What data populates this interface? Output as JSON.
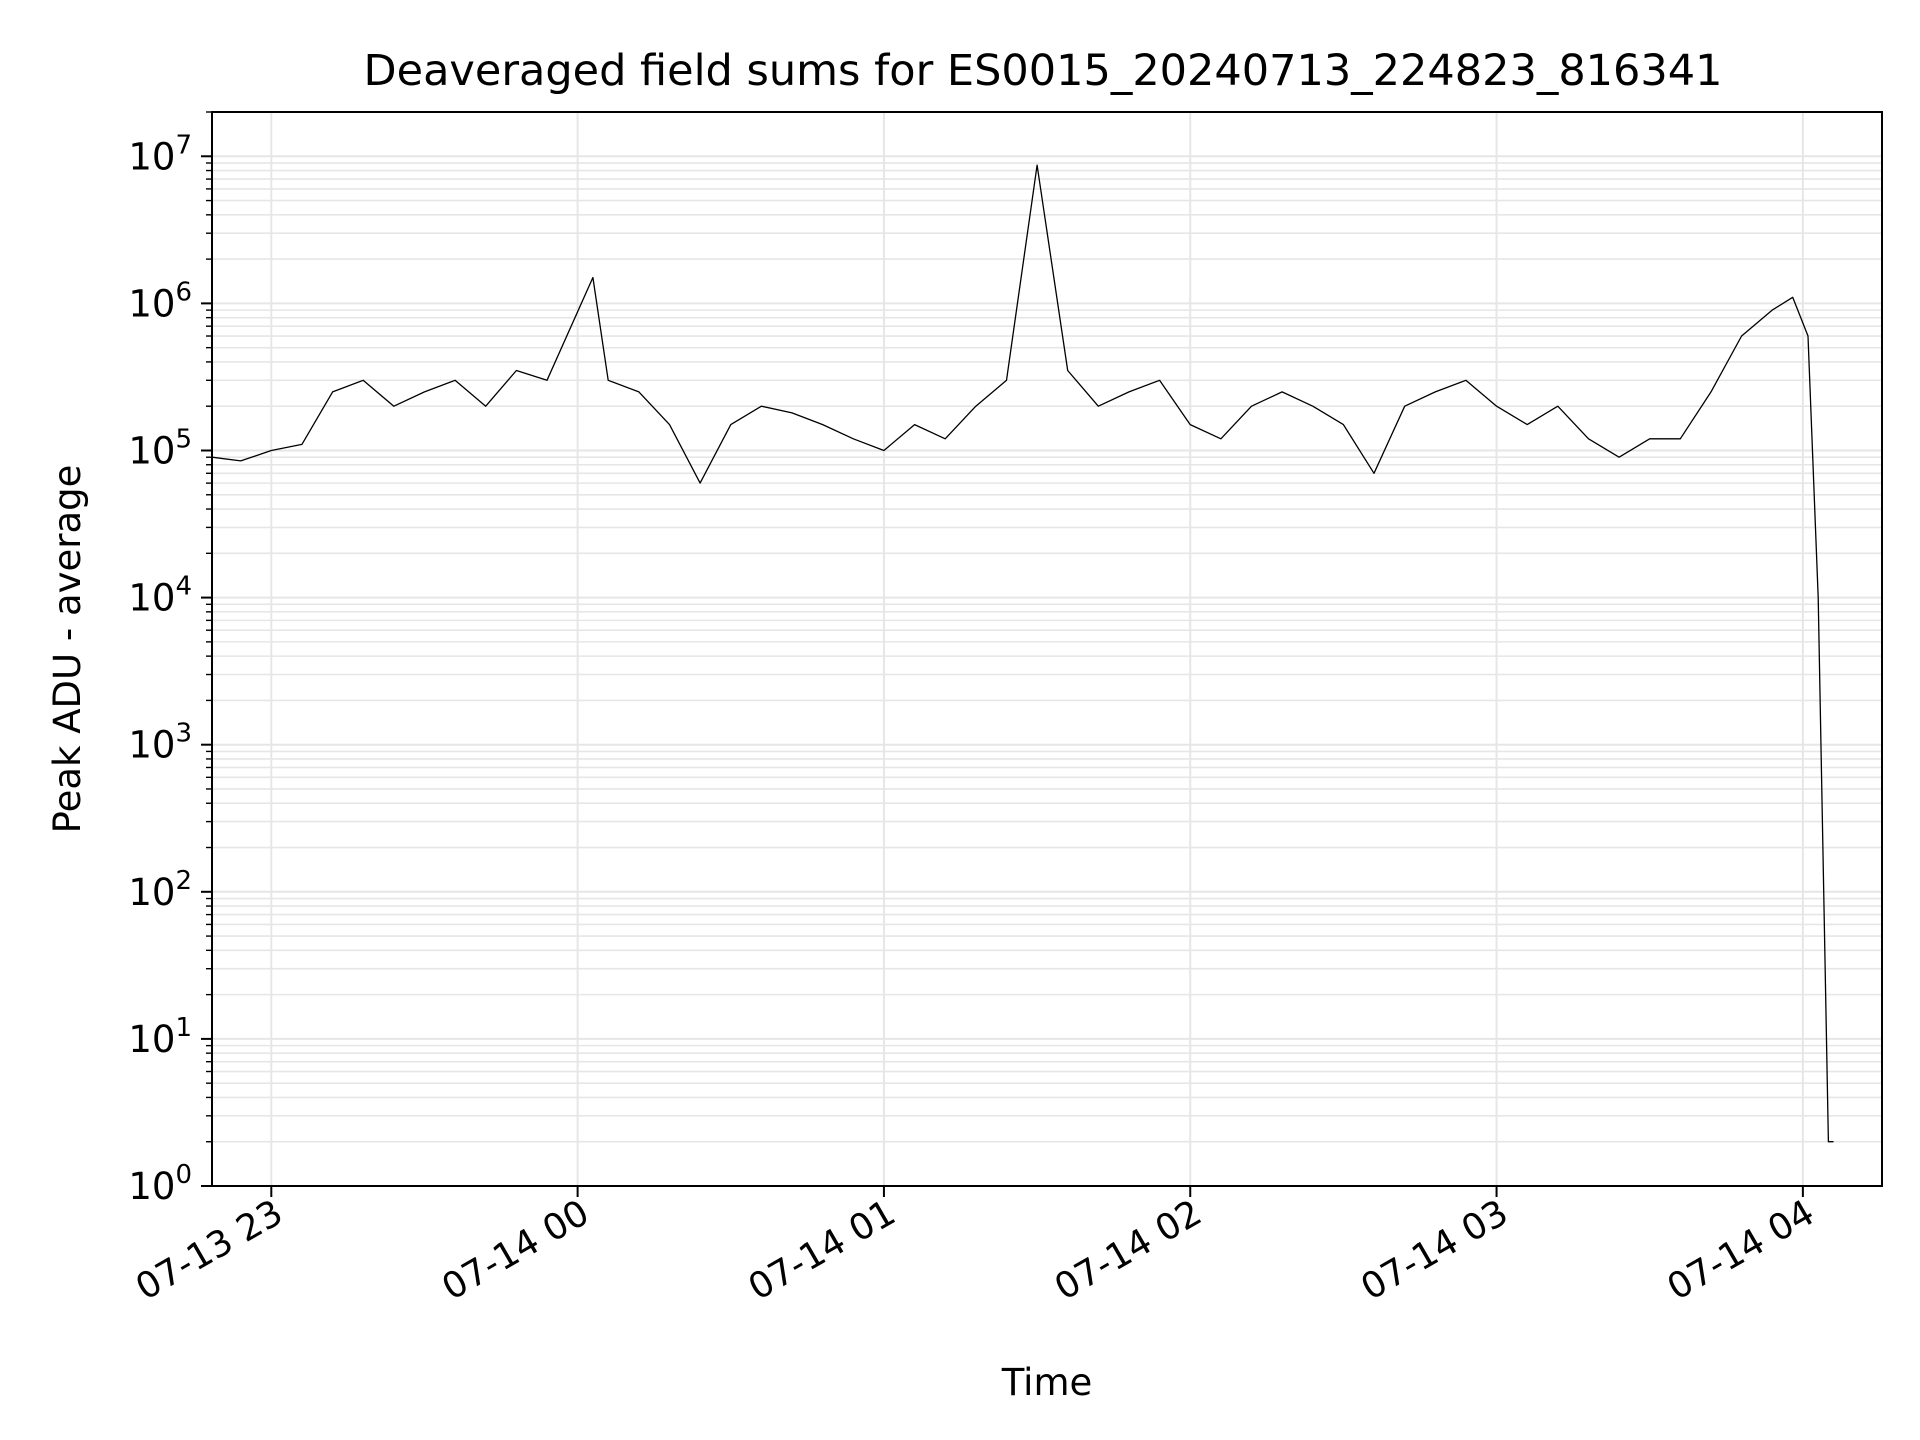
{
  "chart_data": {
    "type": "line",
    "title": "Deaveraged field sums for ES0015_20240713_224823_816341",
    "xlabel": "Time",
    "ylabel": "Peak ADU - average",
    "yscale": "log",
    "ylim": [
      1,
      20000000
    ],
    "xlim": [
      "2024-07-13 22:48:23",
      "2024-07-14 04:15:30"
    ],
    "x_ticks": [
      {
        "time": "2024-07-13 23:00",
        "label": "07-13 23"
      },
      {
        "time": "2024-07-14 00:00",
        "label": "07-14 00"
      },
      {
        "time": "2024-07-14 01:00",
        "label": "07-14 01"
      },
      {
        "time": "2024-07-14 02:00",
        "label": "07-14 02"
      },
      {
        "time": "2024-07-14 03:00",
        "label": "07-14 03"
      },
      {
        "time": "2024-07-14 04:00",
        "label": "07-14 04"
      }
    ],
    "y_ticks": [
      {
        "value": 1,
        "base": "10",
        "exp": "0"
      },
      {
        "value": 10,
        "base": "10",
        "exp": "1"
      },
      {
        "value": 100,
        "base": "10",
        "exp": "2"
      },
      {
        "value": 1000,
        "base": "10",
        "exp": "3"
      },
      {
        "value": 10000,
        "base": "10",
        "exp": "4"
      },
      {
        "value": 100000,
        "base": "10",
        "exp": "5"
      },
      {
        "value": 1000000,
        "base": "10",
        "exp": "6"
      },
      {
        "value": 10000000,
        "base": "10",
        "exp": "7"
      }
    ],
    "grid": true,
    "line_color": "#000000",
    "grid_color": "#e6e6e6",
    "series": [
      {
        "x": [
          "2024-07-13 22:48:23",
          "2024-07-13 22:54",
          "2024-07-13 23:00",
          "2024-07-13 23:06",
          "2024-07-13 23:12",
          "2024-07-13 23:18",
          "2024-07-13 23:24",
          "2024-07-13 23:30",
          "2024-07-13 23:36",
          "2024-07-13 23:42",
          "2024-07-13 23:48",
          "2024-07-13 23:54",
          "2024-07-14 00:03",
          "2024-07-14 00:06",
          "2024-07-14 00:12",
          "2024-07-14 00:18",
          "2024-07-14 00:24",
          "2024-07-14 00:30",
          "2024-07-14 00:36",
          "2024-07-14 00:42",
          "2024-07-14 00:48",
          "2024-07-14 00:54",
          "2024-07-14 01:00",
          "2024-07-14 01:06",
          "2024-07-14 01:12",
          "2024-07-14 01:18",
          "2024-07-14 01:24",
          "2024-07-14 01:30",
          "2024-07-14 01:36",
          "2024-07-14 01:42",
          "2024-07-14 01:48",
          "2024-07-14 01:54",
          "2024-07-14 02:00",
          "2024-07-14 02:06",
          "2024-07-14 02:12",
          "2024-07-14 02:18",
          "2024-07-14 02:24",
          "2024-07-14 02:30",
          "2024-07-14 02:36",
          "2024-07-14 02:42",
          "2024-07-14 02:48",
          "2024-07-14 02:54",
          "2024-07-14 03:00",
          "2024-07-14 03:06",
          "2024-07-14 03:12",
          "2024-07-14 03:18",
          "2024-07-14 03:24",
          "2024-07-14 03:30",
          "2024-07-14 03:36",
          "2024-07-14 03:42",
          "2024-07-14 03:48",
          "2024-07-14 03:54",
          "2024-07-14 03:58",
          "2024-07-14 04:01",
          "2024-07-14 04:03",
          "2024-07-14 04:05",
          "2024-07-14 04:06"
        ],
        "y": [
          90000,
          85000,
          100000,
          110000,
          250000,
          300000,
          200000,
          250000,
          300000,
          200000,
          350000,
          300000,
          1500000,
          300000,
          250000,
          150000,
          60000,
          150000,
          200000,
          180000,
          150000,
          120000,
          100000,
          150000,
          120000,
          200000,
          300000,
          8700000,
          350000,
          200000,
          250000,
          300000,
          150000,
          120000,
          200000,
          250000,
          200000,
          150000,
          70000,
          200000,
          250000,
          300000,
          200000,
          150000,
          200000,
          120000,
          90000,
          120000,
          120000,
          250000,
          600000,
          900000,
          1100000,
          600000,
          10000,
          2,
          2
        ]
      }
    ]
  }
}
